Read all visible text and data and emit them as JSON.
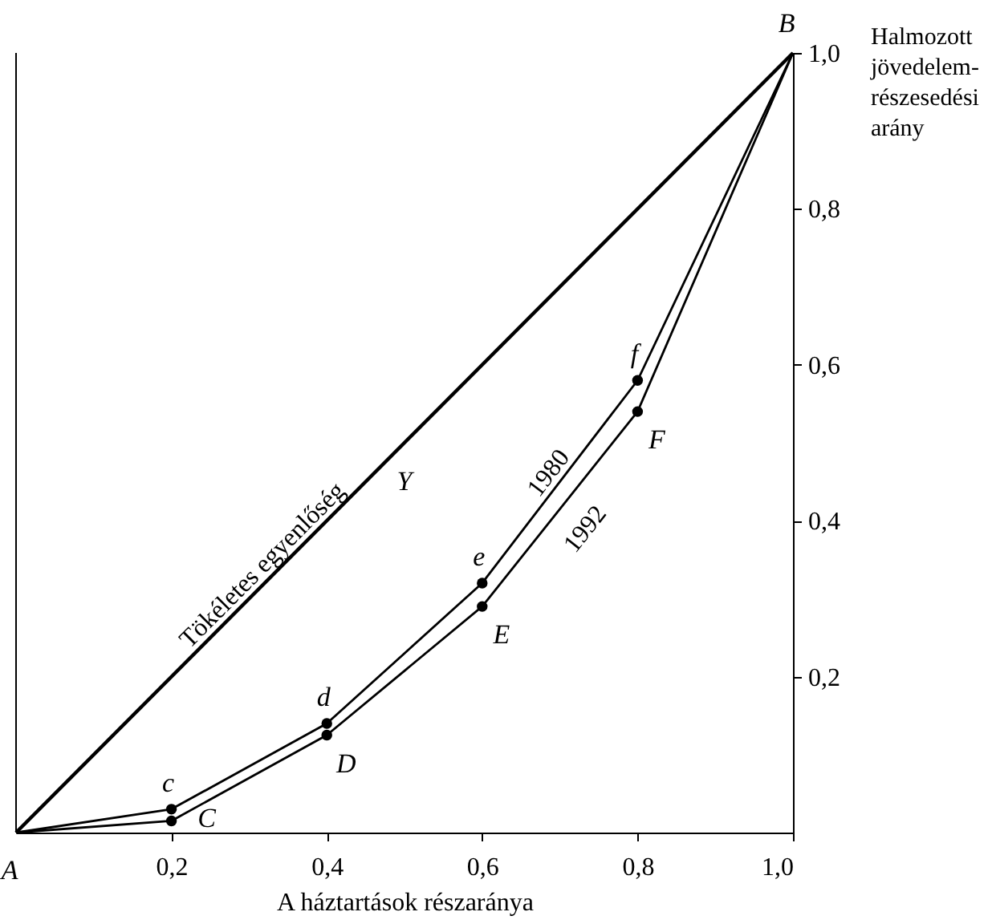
{
  "chart_data": {
    "type": "line",
    "xlabel": "A háztartások részaránya",
    "ylabel": "Halmozott\njövedelem-\nrészesedési\narány",
    "xlim": [
      0,
      1
    ],
    "ylim": [
      0,
      1
    ],
    "xticks": [
      {
        "value": 0.2,
        "label": "0,2"
      },
      {
        "value": 0.4,
        "label": "0,4"
      },
      {
        "value": 0.6,
        "label": "0,6"
      },
      {
        "value": 0.8,
        "label": "0,8"
      },
      {
        "value": 1,
        "label": "1,0"
      }
    ],
    "yticks": [
      {
        "value": 0.2,
        "label": "0,2"
      },
      {
        "value": 0.4,
        "label": "0,4"
      },
      {
        "value": 0.6,
        "label": "0,6"
      },
      {
        "value": 0.8,
        "label": "0,8"
      },
      {
        "value": 1,
        "label": "1,0"
      }
    ],
    "line_style": "solid",
    "series": [
      {
        "name": "Tökéletes egyenlőség",
        "color": "#000000",
        "x": [
          0,
          1
        ],
        "values": [
          0,
          1
        ],
        "marker": "none"
      },
      {
        "name": "1980",
        "color": "#000000",
        "x": [
          0,
          0.2,
          0.4,
          0.6,
          0.8,
          1
        ],
        "values": [
          0,
          0.03,
          0.14,
          0.32,
          0.58,
          1
        ],
        "marker": "circle"
      },
      {
        "name": "1992",
        "color": "#000000",
        "x": [
          0,
          0.2,
          0.4,
          0.6,
          0.8,
          1
        ],
        "values": [
          0,
          0.015,
          0.125,
          0.29,
          0.54,
          1
        ],
        "marker": "circle"
      }
    ],
    "annotations": [
      {
        "text": "A",
        "x": 0,
        "y": 0
      },
      {
        "text": "B",
        "x": 1,
        "y": 1
      },
      {
        "text": "c",
        "x": 0.2,
        "y": 0.03
      },
      {
        "text": "C",
        "x": 0.2,
        "y": 0.015
      },
      {
        "text": "d",
        "x": 0.4,
        "y": 0.14
      },
      {
        "text": "D",
        "x": 0.4,
        "y": 0.125
      },
      {
        "text": "e",
        "x": 0.6,
        "y": 0.32
      },
      {
        "text": "E",
        "x": 0.6,
        "y": 0.29
      },
      {
        "text": "f",
        "x": 0.8,
        "y": 0.58
      },
      {
        "text": "F",
        "x": 0.8,
        "y": 0.54
      },
      "Y"
    ]
  }
}
